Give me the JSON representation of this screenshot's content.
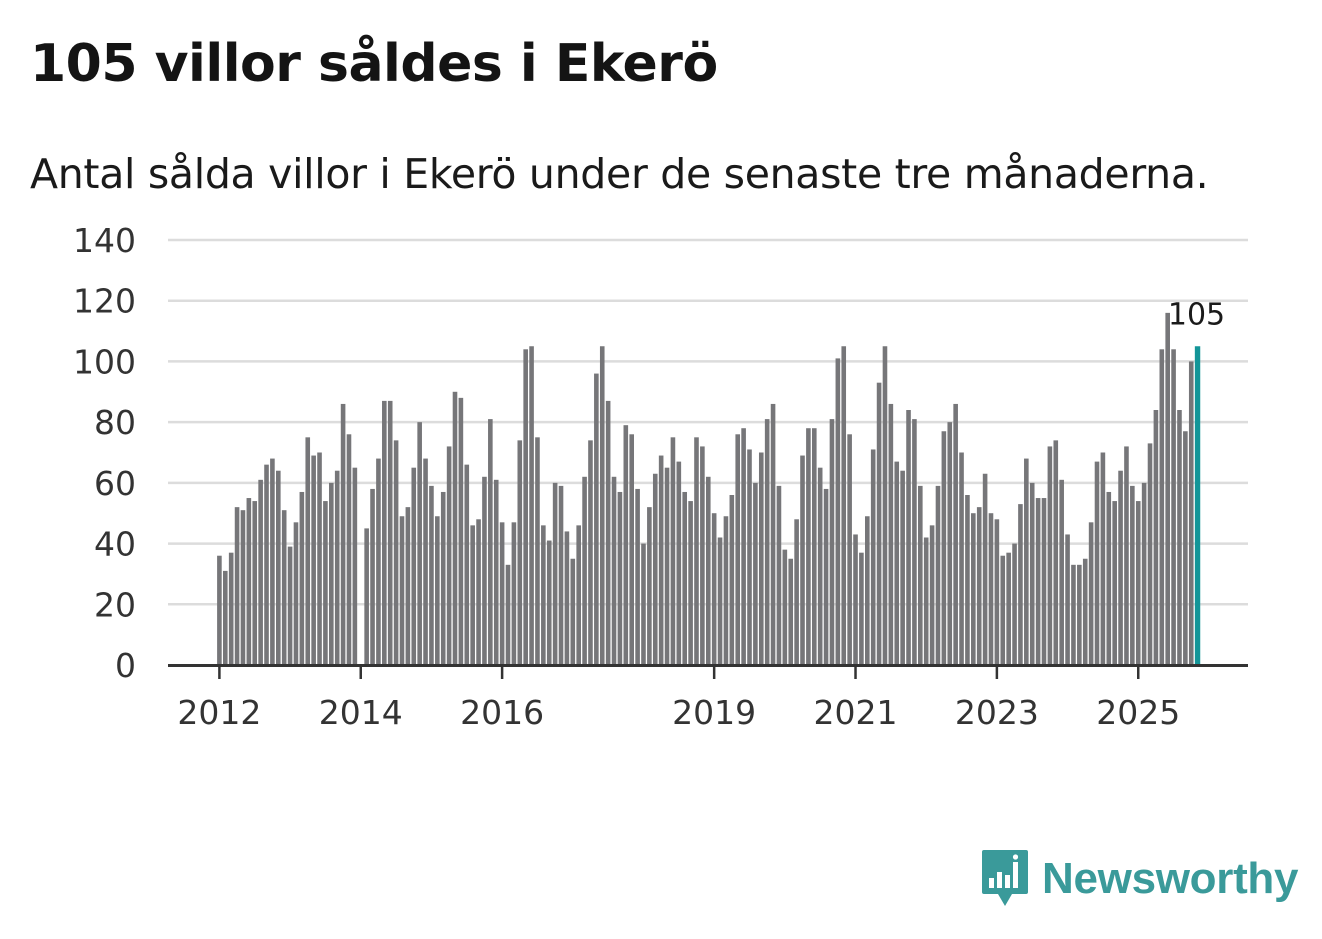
{
  "colors": {
    "bar": "#767679",
    "highlight": "#139598",
    "grid": "#dcdcdc",
    "axis": "#333333",
    "brand": "#3a9a9a"
  },
  "brand": {
    "name": "Newsworthy",
    "icon": "newsworthy-chart-bubble-icon"
  },
  "chart_data": {
    "type": "bar",
    "title": "105 villor såldes i Ekerö",
    "subtitle": "Antal sålda villor i Ekerö under de senaste tre månaderna.",
    "xlabel": "",
    "ylabel": "",
    "ylim": [
      0,
      140
    ],
    "yticks": [
      0,
      20,
      40,
      60,
      80,
      100,
      120,
      140
    ],
    "grid": true,
    "start": "2012-01",
    "xticks": [
      {
        "label": "2012",
        "index": 0
      },
      {
        "label": "2014",
        "index": 24
      },
      {
        "label": "2016",
        "index": 48
      },
      {
        "label": "2019",
        "index": 84
      },
      {
        "label": "2021",
        "index": 108
      },
      {
        "label": "2023",
        "index": 132
      },
      {
        "label": "2025",
        "index": 156
      }
    ],
    "values": [
      36,
      31,
      37,
      52,
      51,
      55,
      54,
      61,
      66,
      68,
      64,
      51,
      39,
      47,
      57,
      75,
      69,
      70,
      54,
      60,
      64,
      86,
      76,
      65,
      null,
      45,
      58,
      68,
      87,
      87,
      74,
      49,
      52,
      65,
      80,
      68,
      59,
      49,
      57,
      72,
      90,
      88,
      66,
      46,
      48,
      62,
      81,
      61,
      47,
      33,
      47,
      74,
      104,
      105,
      75,
      46,
      41,
      60,
      59,
      44,
      35,
      46,
      62,
      74,
      96,
      105,
      87,
      62,
      57,
      79,
      76,
      58,
      40,
      52,
      63,
      69,
      65,
      75,
      67,
      57,
      54,
      75,
      72,
      62,
      50,
      42,
      49,
      56,
      76,
      78,
      71,
      60,
      70,
      81,
      86,
      59,
      38,
      35,
      48,
      69,
      78,
      78,
      65,
      58,
      81,
      101,
      105,
      76,
      43,
      37,
      49,
      71,
      93,
      105,
      86,
      67,
      64,
      84,
      81,
      59,
      42,
      46,
      59,
      77,
      80,
      86,
      70,
      56,
      50,
      52,
      63,
      50,
      48,
      36,
      37,
      40,
      53,
      68,
      60,
      55,
      55,
      72,
      74,
      61,
      43,
      33,
      33,
      35,
      47,
      67,
      70,
      57,
      54,
      64,
      72,
      59,
      54,
      60,
      73,
      84,
      104,
      116,
      104,
      84,
      77,
      100,
      105
    ],
    "highlight_index": 166,
    "annotation": "105"
  }
}
